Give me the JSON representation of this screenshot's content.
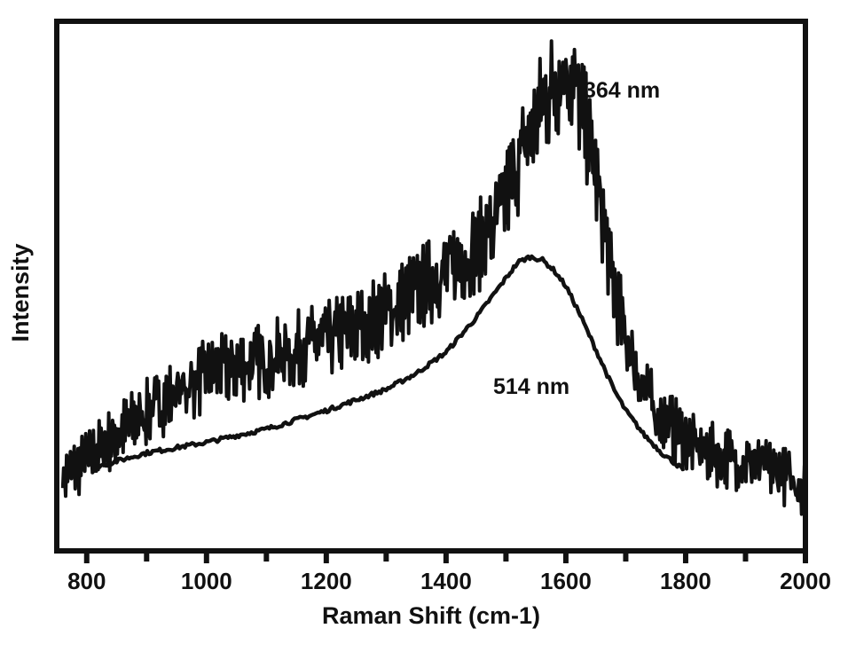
{
  "chart_data": {
    "type": "line",
    "xlabel": "Raman Shift (cm-1)",
    "ylabel": "Intensity",
    "xlim": [
      750,
      2000
    ],
    "ylim": [
      0,
      100
    ],
    "x_ticks": [
      800,
      1000,
      1200,
      1400,
      1600,
      1800,
      2000
    ],
    "y_ticks_shown": false,
    "grid": false,
    "series": [
      {
        "name": "364 nm",
        "style": "noisy",
        "color": "#111111",
        "x": [
          760,
          800,
          850,
          900,
          950,
          1000,
          1050,
          1100,
          1150,
          1200,
          1250,
          1300,
          1350,
          1400,
          1450,
          1480,
          1500,
          1520,
          1540,
          1560,
          1580,
          1600,
          1620,
          1640,
          1660,
          1680,
          1700,
          1720,
          1750,
          1800,
          1850,
          1900,
          1950,
          2000
        ],
        "values": [
          14,
          17,
          22,
          26,
          30,
          33,
          35,
          36,
          38,
          40,
          42,
          45,
          49,
          53,
          57,
          61,
          67,
          73,
          79,
          84,
          88,
          91,
          86,
          77,
          64,
          50,
          40,
          33,
          26,
          21,
          18,
          17,
          15,
          12
        ]
      },
      {
        "name": "514 nm",
        "style": "smooth",
        "color": "#111111",
        "x": [
          820,
          900,
          1000,
          1100,
          1200,
          1300,
          1350,
          1400,
          1450,
          1480,
          1500,
          1520,
          1540,
          1560,
          1580,
          1600,
          1620,
          1650,
          1680,
          1700,
          1730,
          1760,
          1800
        ],
        "values": [
          16,
          18.5,
          20.5,
          23,
          26.5,
          30.5,
          33.5,
          37.5,
          44,
          48.5,
          51.5,
          54.5,
          55.5,
          55,
          53,
          50,
          45.5,
          38,
          30.5,
          26.5,
          22,
          18.5,
          15
        ]
      }
    ],
    "annotations": [
      "364 nm",
      "514 nm"
    ]
  }
}
